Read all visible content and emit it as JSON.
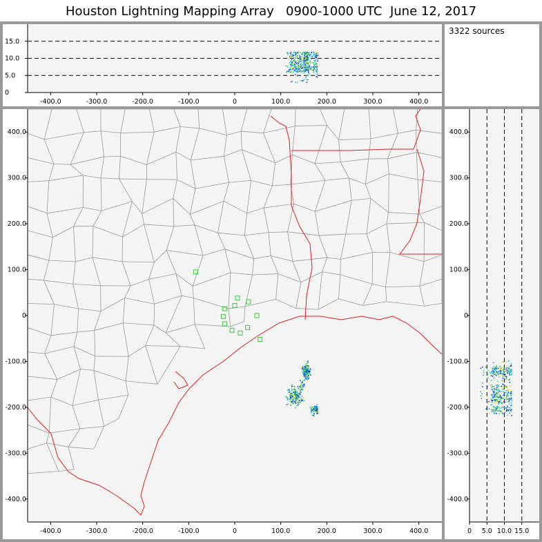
{
  "title": "Houston Lightning Mapping Array   0900-1000 UTC  June 12, 2017",
  "source_count": "3322 sources",
  "colors": {
    "background": "#f4f4f4",
    "frame": "#999999",
    "county_border": "#9a9a9a",
    "state_border": "#d62020",
    "station": "#33cc33",
    "dash": "#000000",
    "source_colors": [
      "#0a28c8",
      "#1480ff",
      "#14c8c8",
      "#20c060",
      "#c8e014"
    ]
  },
  "chart_data": [
    {
      "type": "scatter",
      "name": "altitude-vs-east-west",
      "xlim": [
        -450,
        450
      ],
      "ylim": [
        0,
        20
      ],
      "x_ticks": [
        "-400.0",
        "-300.0",
        "-200.0",
        "-100.0",
        "0",
        "100.0",
        "200.0",
        "300.0",
        "400.0"
      ],
      "x_tick_values": [
        -400,
        -300,
        -200,
        -100,
        0,
        100,
        200,
        300,
        400
      ],
      "y_ticks": [
        "0",
        "5.0",
        "10.0",
        "15.0"
      ],
      "y_tick_values": [
        0,
        5,
        10,
        15
      ],
      "dashed_levels": [
        5,
        10,
        15
      ]
    },
    {
      "type": "scatter",
      "name": "plan-view-map",
      "xlim": [
        -450,
        450
      ],
      "ylim": [
        -450,
        450
      ],
      "x_ticks": [
        "-400.0",
        "-300.0",
        "-200.0",
        "-100.0",
        "0",
        "100.0",
        "200.0",
        "300.0",
        "400.0"
      ],
      "x_tick_values": [
        -400,
        -300,
        -200,
        -100,
        0,
        100,
        200,
        300,
        400
      ],
      "y_ticks": [
        "400.0",
        "300.0",
        "200.0",
        "100.0",
        "0",
        "-100.0",
        "-200.0",
        "-300.0",
        "-400.0"
      ],
      "y_tick_values": [
        400,
        300,
        200,
        100,
        0,
        -100,
        -200,
        -300,
        -400
      ],
      "stations": [
        [
          -85,
          95
        ],
        [
          -22,
          15
        ],
        [
          0,
          22
        ],
        [
          6,
          38
        ],
        [
          30,
          30
        ],
        [
          -25,
          -2
        ],
        [
          -22,
          -18
        ],
        [
          -6,
          -32
        ],
        [
          12,
          -38
        ],
        [
          28,
          -26
        ],
        [
          48,
          0
        ],
        [
          55,
          -52
        ]
      ],
      "source_clusters": [
        {
          "x": 155,
          "y": -120,
          "sx": 6,
          "sy": 12,
          "n": 160
        },
        {
          "x": 130,
          "y": -175,
          "sx": 12,
          "sy": 14,
          "n": 170
        },
        {
          "x": 172,
          "y": -205,
          "sx": 6,
          "sy": 7,
          "n": 80
        },
        {
          "x": 145,
          "y": -150,
          "sx": 4,
          "sy": 10,
          "n": 30
        }
      ]
    },
    {
      "type": "scatter",
      "name": "north-south-vs-altitude",
      "xlim": [
        0,
        20
      ],
      "ylim": [
        -450,
        450
      ],
      "x_ticks": [
        "0",
        "5.0",
        "10.0",
        "15.0"
      ],
      "x_tick_values": [
        0,
        5,
        10,
        15
      ],
      "y_ticks": [
        "400.0",
        "300.0",
        "200.0",
        "100.0",
        "0",
        "-100.0",
        "-200.0",
        "-300.0",
        "-400.0"
      ],
      "y_tick_values": [
        400,
        300,
        200,
        100,
        0,
        -100,
        -200,
        -300,
        -400
      ],
      "dashed_levels": [
        5,
        10,
        15
      ]
    }
  ]
}
